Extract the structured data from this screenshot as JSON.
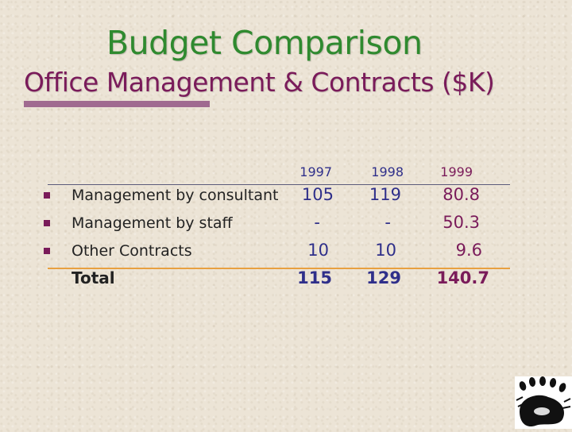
{
  "header": {
    "title": "Budget Comparison",
    "subtitle": "Office Management & Contracts ($K)"
  },
  "table": {
    "years": [
      "1997",
      "1998",
      "1999"
    ],
    "rows": [
      {
        "label": "Management by consultant",
        "values": [
          "105",
          "119",
          "80.8"
        ]
      },
      {
        "label": "Management by staff",
        "values": [
          "-",
          "-",
          "50.3"
        ]
      },
      {
        "label": "Other Contracts",
        "values": [
          "10",
          "10",
          "9.6"
        ]
      }
    ],
    "total": {
      "label": "Total",
      "values": [
        "115",
        "129",
        "140.7"
      ]
    }
  },
  "colors": {
    "title": "#2f8a2f",
    "subtitle": "#7a1b5a",
    "values": "#2f2f8a",
    "accent_1999": "#7a1b5a",
    "total_rule": "#e8a040"
  },
  "logo": {
    "icon": "paw-prints-logo-icon"
  }
}
